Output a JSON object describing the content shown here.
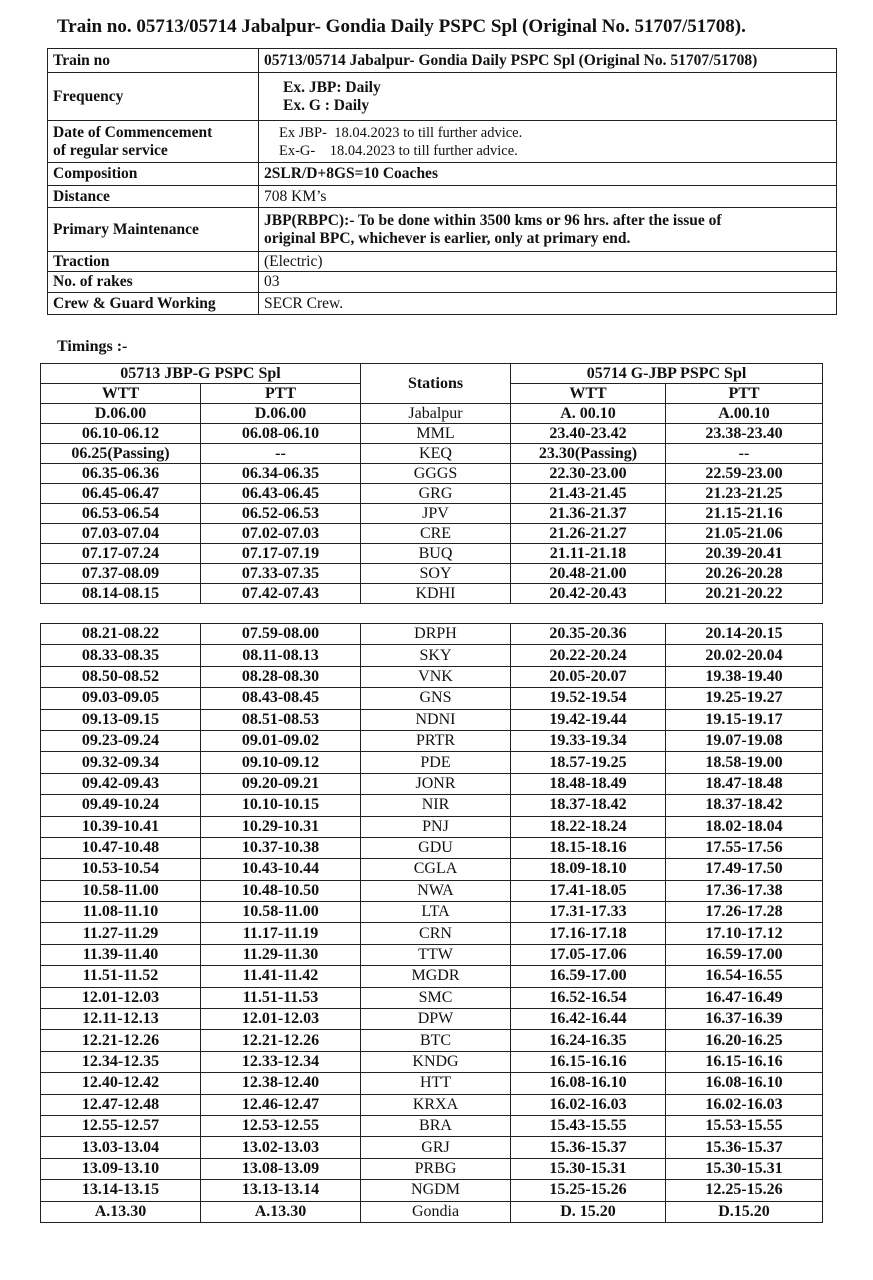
{
  "title": "Train no. 05713/05714 Jabalpur- Gondia Daily PSPC Spl (Original No. 51707/51708).",
  "info": [
    {
      "label": [
        "Train no"
      ],
      "value": [
        "05713/05714 Jabalpur- Gondia Daily PSPC Spl (Original No. 51707/51708)"
      ]
    },
    {
      "label": [
        "Frequency"
      ],
      "value": [
        "Ex. JBP: Daily",
        "Ex. G : Daily"
      ]
    },
    {
      "label": [
        "Date of Commencement",
        "of regular service"
      ],
      "value": [
        "Ex JBP-  18.04.2023 to till further advice.",
        "Ex-G-    18.04.2023 to till further advice."
      ]
    },
    {
      "label": [
        "Composition"
      ],
      "value": [
        "2SLR/D+8GS=10 Coaches"
      ]
    },
    {
      "label": [
        "Distance"
      ],
      "value": [
        "708 KM’s"
      ]
    },
    {
      "label": [
        "Primary Maintenance"
      ],
      "value": [
        "JBP(RBPC):- To be done within 3500 kms or 96 hrs. after the issue of",
        "original BPC, whichever is earlier, only at primary end."
      ]
    },
    {
      "label": [
        "Traction"
      ],
      "value": [
        "(Electric)"
      ]
    },
    {
      "label": [
        "No. of rakes"
      ],
      "value": [
        "03"
      ]
    },
    {
      "label": [
        "Crew & Guard Working"
      ],
      "value": [
        "SECR Crew."
      ]
    }
  ],
  "timings": {
    "label": "Timings :-",
    "header": {
      "up": "05713 JBP-G PSPC Spl",
      "stations": "Stations",
      "down": "05714 G-JBP PSPC Spl",
      "sub": [
        "WTT",
        "PTT",
        "WTT",
        "PTT"
      ]
    },
    "blocks": [
      {
        "rows": [
          [
            "D.06.00",
            "D.06.00",
            "Jabalpur",
            "A. 00.10",
            "A.00.10"
          ],
          [
            "06.10-06.12",
            "06.08-06.10",
            "MML",
            "23.40-23.42",
            "23.38-23.40"
          ],
          [
            "06.25(Passing)",
            "--",
            "KEQ",
            "23.30(Passing)",
            "--"
          ],
          [
            "06.35-06.36",
            "06.34-06.35",
            "GGGS",
            "22.30-23.00",
            "22.59-23.00"
          ],
          [
            "06.45-06.47",
            "06.43-06.45",
            "GRG",
            "21.43-21.45",
            "21.23-21.25"
          ],
          [
            "06.53-06.54",
            "06.52-06.53",
            "JPV",
            "21.36-21.37",
            "21.15-21.16"
          ],
          [
            "07.03-07.04",
            "07.02-07.03",
            "CRE",
            "21.26-21.27",
            "21.05-21.06"
          ],
          [
            "07.17-07.24",
            "07.17-07.19",
            "BUQ",
            "21.11-21.18",
            "20.39-20.41"
          ],
          [
            "07.37-08.09",
            "07.33-07.35",
            "SOY",
            "20.48-21.00",
            "20.26-20.28"
          ],
          [
            "08.14-08.15",
            "07.42-07.43",
            "KDHI",
            "20.42-20.43",
            "20.21-20.22"
          ]
        ]
      },
      {
        "rows": [
          [
            "08.21-08.22",
            "07.59-08.00",
            "DRPH",
            "20.35-20.36",
            "20.14-20.15"
          ],
          [
            "08.33-08.35",
            "08.11-08.13",
            "SKY",
            "20.22-20.24",
            "20.02-20.04"
          ],
          [
            "08.50-08.52",
            "08.28-08.30",
            "VNK",
            "20.05-20.07",
            "19.38-19.40"
          ],
          [
            "09.03-09.05",
            "08.43-08.45",
            "GNS",
            "19.52-19.54",
            "19.25-19.27"
          ],
          [
            "09.13-09.15",
            "08.51-08.53",
            "NDNI",
            "19.42-19.44",
            "19.15-19.17"
          ],
          [
            "09.23-09.24",
            "09.01-09.02",
            "PRTR",
            "19.33-19.34",
            "19.07-19.08"
          ],
          [
            "09.32-09.34",
            "09.10-09.12",
            "PDE",
            "18.57-19.25",
            "18.58-19.00"
          ],
          [
            "09.42-09.43",
            "09.20-09.21",
            "JONR",
            "18.48-18.49",
            "18.47-18.48"
          ],
          [
            "09.49-10.24",
            "10.10-10.15",
            "NIR",
            "18.37-18.42",
            "18.37-18.42"
          ],
          [
            "10.39-10.41",
            "10.29-10.31",
            "PNJ",
            "18.22-18.24",
            "18.02-18.04"
          ],
          [
            "10.47-10.48",
            "10.37-10.38",
            "GDU",
            "18.15-18.16",
            "17.55-17.56"
          ],
          [
            "10.53-10.54",
            "10.43-10.44",
            "CGLA",
            "18.09-18.10",
            "17.49-17.50"
          ],
          [
            "10.58-11.00",
            "10.48-10.50",
            "NWA",
            "17.41-18.05",
            "17.36-17.38"
          ],
          [
            "11.08-11.10",
            "10.58-11.00",
            "LTA",
            "17.31-17.33",
            "17.26-17.28"
          ],
          [
            "11.27-11.29",
            "11.17-11.19",
            "CRN",
            "17.16-17.18",
            "17.10-17.12"
          ],
          [
            "11.39-11.40",
            "11.29-11.30",
            "TTW",
            "17.05-17.06",
            "16.59-17.00"
          ],
          [
            "11.51-11.52",
            "11.41-11.42",
            "MGDR",
            "16.59-17.00",
            "16.54-16.55"
          ],
          [
            "12.01-12.03",
            "11.51-11.53",
            "SMC",
            "16.52-16.54",
            "16.47-16.49"
          ],
          [
            "12.11-12.13",
            "12.01-12.03",
            "DPW",
            "16.42-16.44",
            "16.37-16.39"
          ],
          [
            "12.21-12.26",
            "12.21-12.26",
            "BTC",
            "16.24-16.35",
            "16.20-16.25"
          ],
          [
            "12.34-12.35",
            "12.33-12.34",
            "KNDG",
            "16.15-16.16",
            "16.15-16.16"
          ],
          [
            "12.40-12.42",
            "12.38-12.40",
            "HTT",
            "16.08-16.10",
            "16.08-16.10"
          ],
          [
            "12.47-12.48",
            "12.46-12.47",
            "KRXA",
            "16.02-16.03",
            "16.02-16.03"
          ],
          [
            "12.55-12.57",
            "12.53-12.55",
            "BRA",
            "15.43-15.55",
            "15.53-15.55"
          ],
          [
            "13.03-13.04",
            "13.02-13.03",
            "GRJ",
            "15.36-15.37",
            "15.36-15.37"
          ],
          [
            "13.09-13.10",
            "13.08-13.09",
            "PRBG",
            "15.30-15.31",
            "15.30-15.31"
          ],
          [
            "13.14-13.15",
            "13.13-13.14",
            "NGDM",
            "15.25-15.26",
            "12.25-15.26"
          ],
          [
            "A.13.30",
            "A.13.30",
            "Gondia",
            "D. 15.20",
            "D.15.20"
          ]
        ]
      }
    ]
  }
}
